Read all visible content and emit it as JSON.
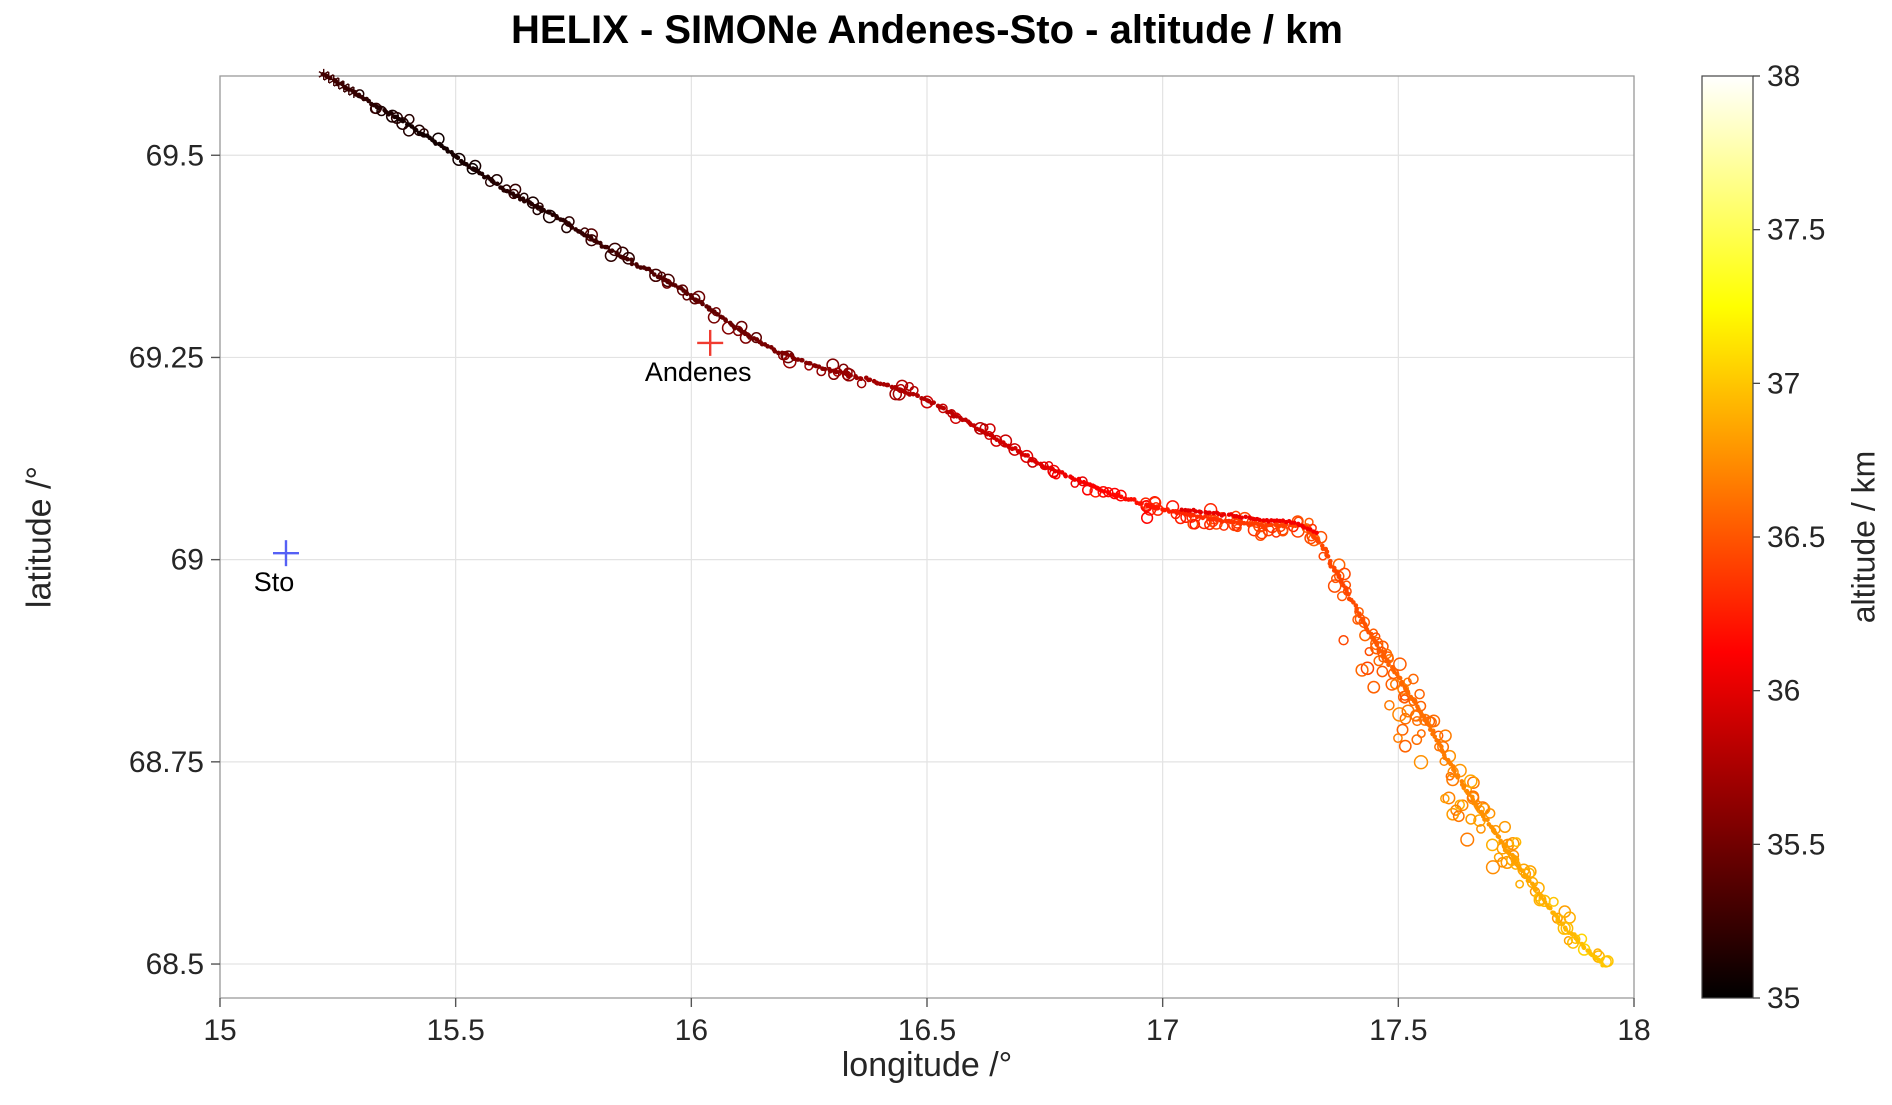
{
  "chart_data": {
    "type": "scatter",
    "title": "HELIX - SIMONe Andenes-Sto - altitude / km",
    "xlabel": "longitude /°",
    "ylabel": "latitude /°",
    "xlim": [
      15,
      18
    ],
    "ylim": [
      68.458,
      69.598
    ],
    "xticks": [
      15,
      15.5,
      16,
      16.5,
      17,
      17.5,
      18
    ],
    "yticks": [
      68.5,
      68.75,
      69,
      69.25,
      69.5
    ],
    "grid": true,
    "colorbar": {
      "label": "altitude / km",
      "min": 35,
      "max": 38,
      "ticks": [
        35,
        35.5,
        36,
        36.5,
        37,
        37.5,
        38
      ],
      "colormap": "hot",
      "position": "right"
    },
    "stations": [
      {
        "name": "Andenes",
        "lon": 16.04,
        "lat": 69.268,
        "marker": "+",
        "color": "#f03b30"
      },
      {
        "name": "Sto",
        "lon": 15.14,
        "lat": 69.008,
        "marker": "+",
        "color": "#5560f5"
      }
    ],
    "track": [
      [
        15.22,
        69.6,
        35.3
      ],
      [
        15.3,
        69.572,
        35.22
      ],
      [
        15.38,
        69.545,
        35.1
      ],
      [
        15.46,
        69.515,
        35.08
      ],
      [
        15.54,
        69.482,
        35.12
      ],
      [
        15.62,
        69.452,
        35.18
      ],
      [
        15.7,
        69.428,
        35.15
      ],
      [
        15.78,
        69.4,
        35.25
      ],
      [
        15.86,
        69.372,
        35.3
      ],
      [
        15.94,
        69.348,
        35.38
      ],
      [
        16.02,
        69.318,
        35.42
      ],
      [
        16.1,
        69.285,
        35.48
      ],
      [
        16.18,
        69.258,
        35.55
      ],
      [
        16.26,
        69.24,
        35.6
      ],
      [
        16.34,
        69.228,
        35.68
      ],
      [
        16.42,
        69.215,
        35.75
      ],
      [
        16.5,
        69.198,
        35.8
      ],
      [
        16.58,
        69.172,
        35.85
      ],
      [
        16.66,
        69.145,
        35.92
      ],
      [
        16.74,
        69.118,
        35.98
      ],
      [
        16.82,
        69.098,
        36.08
      ],
      [
        16.9,
        69.08,
        36.15
      ],
      [
        16.98,
        69.065,
        36.22
      ],
      [
        17.06,
        69.055,
        36.3
      ],
      [
        17.14,
        69.047,
        36.35
      ],
      [
        17.22,
        69.042,
        36.4
      ],
      [
        17.3,
        69.042,
        36.42
      ],
      [
        17.34,
        69.015,
        36.45
      ],
      [
        17.38,
        68.972,
        36.42
      ],
      [
        17.42,
        68.93,
        36.48
      ],
      [
        17.46,
        68.888,
        36.52
      ],
      [
        17.5,
        68.855,
        36.58
      ],
      [
        17.54,
        68.818,
        36.6
      ],
      [
        17.58,
        68.778,
        36.65
      ],
      [
        17.62,
        68.738,
        36.7
      ],
      [
        17.66,
        68.7,
        36.74
      ],
      [
        17.7,
        68.668,
        36.78
      ],
      [
        17.75,
        68.625,
        36.84
      ],
      [
        17.8,
        68.585,
        36.88
      ],
      [
        17.85,
        68.548,
        36.93
      ],
      [
        17.9,
        68.517,
        36.97
      ],
      [
        17.94,
        68.498,
        37.0
      ]
    ],
    "overlap_segment": [
      [
        17.04,
        69.062,
        36.0
      ],
      [
        17.12,
        69.056,
        36.03
      ],
      [
        17.2,
        69.05,
        36.05
      ],
      [
        17.28,
        69.046,
        36.08
      ],
      [
        17.33,
        69.032,
        36.1
      ]
    ]
  }
}
